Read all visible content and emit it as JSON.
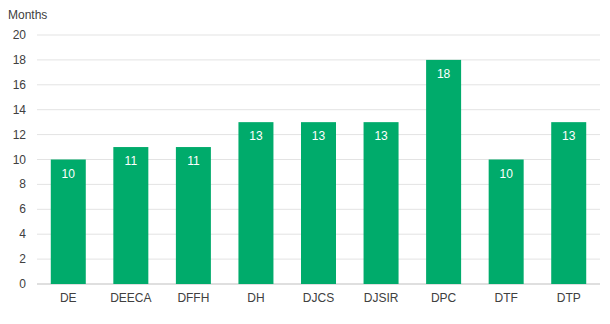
{
  "chart_data": {
    "type": "bar",
    "y_label": "Months",
    "categories": [
      "DE",
      "DEECA",
      "DFFH",
      "DH",
      "DJCS",
      "DJSIR",
      "DPC",
      "DTF",
      "DTP"
    ],
    "values": [
      10,
      11,
      11,
      13,
      13,
      13,
      18,
      10,
      13
    ],
    "color": "#00ab6b",
    "ylim": [
      0,
      20
    ],
    "yticks": [
      0,
      2,
      4,
      6,
      8,
      10,
      12,
      14,
      16,
      18,
      20
    ],
    "grid": true,
    "data_labels": true
  }
}
